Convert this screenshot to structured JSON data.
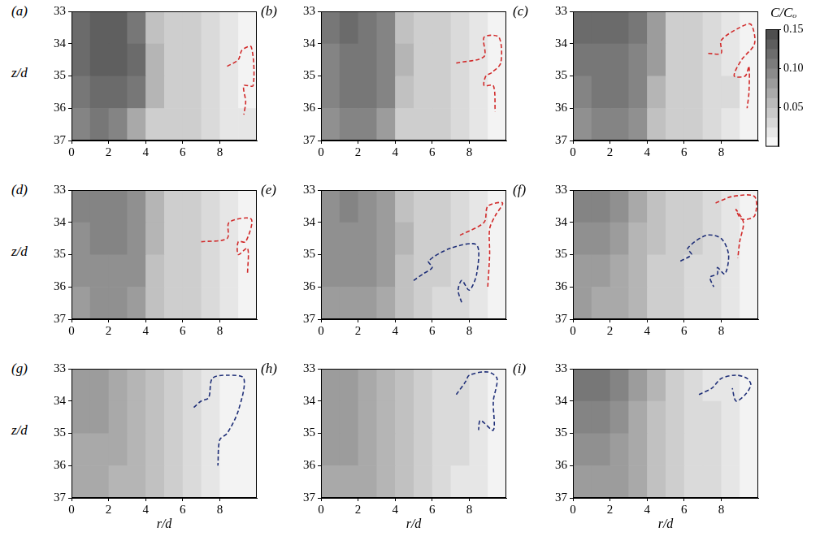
{
  "chart_data": [
    {
      "type": "heatmap",
      "panel": "(a)",
      "y_label": "z/d",
      "xlim": [
        0,
        10
      ],
      "xticks": [
        0,
        2,
        4,
        6,
        8
      ],
      "ylim": [
        37,
        33
      ],
      "yticks": [
        33,
        34,
        35,
        36,
        37
      ],
      "grid": false,
      "cells": {
        "x_edges": [
          0,
          1,
          2,
          3,
          4,
          5,
          6,
          7,
          8,
          9,
          10
        ],
        "y_edges": [
          33,
          34,
          35,
          36,
          37
        ],
        "values": [
          [
            0.12,
            0.13,
            0.13,
            0.11,
            0.05,
            0.04,
            0.04,
            0.03,
            0.02,
            0.01
          ],
          [
            0.12,
            0.13,
            0.13,
            0.12,
            0.06,
            0.04,
            0.04,
            0.03,
            0.02,
            0.01
          ],
          [
            0.11,
            0.12,
            0.12,
            0.11,
            0.06,
            0.04,
            0.04,
            0.03,
            0.02,
            0.01
          ],
          [
            0.1,
            0.11,
            0.1,
            0.07,
            0.04,
            0.04,
            0.04,
            0.03,
            0.02,
            0.02
          ]
        ]
      },
      "series": [
        {
          "color": "#d12a2a",
          "line_style": "dashed",
          "x": [
            8.4,
            9.0,
            9.2,
            9.7,
            9.8,
            9.3,
            9.4,
            9.3
          ],
          "y": [
            34.7,
            34.5,
            34.2,
            34.1,
            35.3,
            35.3,
            35.8,
            36.2
          ]
        }
      ]
    },
    {
      "type": "heatmap",
      "panel": "(b)",
      "xlim": [
        0,
        10
      ],
      "xticks": [
        0,
        2,
        4,
        6,
        8
      ],
      "ylim": [
        37,
        33
      ],
      "yticks": [
        33,
        34,
        35,
        36,
        37
      ],
      "grid": false,
      "cells": {
        "x_edges": [
          0,
          1,
          2,
          3,
          4,
          5,
          6,
          7,
          8,
          9,
          10
        ],
        "y_edges": [
          33,
          34,
          35,
          36,
          37
        ],
        "values": [
          [
            0.11,
            0.12,
            0.11,
            0.1,
            0.05,
            0.04,
            0.04,
            0.03,
            0.02,
            0.01
          ],
          [
            0.1,
            0.11,
            0.11,
            0.1,
            0.06,
            0.04,
            0.04,
            0.03,
            0.02,
            0.01
          ],
          [
            0.1,
            0.11,
            0.11,
            0.1,
            0.05,
            0.04,
            0.04,
            0.03,
            0.02,
            0.01
          ],
          [
            0.09,
            0.1,
            0.1,
            0.08,
            0.04,
            0.04,
            0.04,
            0.03,
            0.02,
            0.01
          ]
        ]
      },
      "series": [
        {
          "color": "#d12a2a",
          "line_style": "dashed",
          "x": [
            7.3,
            8.8,
            8.8,
            9.6,
            9.7,
            9.2,
            8.9,
            8.8,
            9.3,
            9.4
          ],
          "y": [
            34.6,
            34.4,
            33.8,
            33.8,
            34.6,
            34.9,
            35.0,
            35.3,
            35.3,
            36.1
          ]
        }
      ]
    },
    {
      "type": "heatmap",
      "panel": "(c)",
      "xlim": [
        0,
        10
      ],
      "xticks": [
        0,
        2,
        4,
        6,
        8
      ],
      "ylim": [
        37,
        33
      ],
      "yticks": [
        33,
        34,
        35,
        36,
        37
      ],
      "grid": false,
      "cells": {
        "x_edges": [
          0,
          1,
          2,
          3,
          4,
          5,
          6,
          7,
          8,
          9,
          10
        ],
        "y_edges": [
          33,
          34,
          35,
          36,
          37
        ],
        "values": [
          [
            0.12,
            0.12,
            0.12,
            0.11,
            0.08,
            0.04,
            0.04,
            0.03,
            0.02,
            0.01
          ],
          [
            0.11,
            0.11,
            0.11,
            0.1,
            0.08,
            0.04,
            0.04,
            0.03,
            0.02,
            0.01
          ],
          [
            0.1,
            0.11,
            0.11,
            0.1,
            0.06,
            0.04,
            0.04,
            0.03,
            0.03,
            0.01
          ],
          [
            0.09,
            0.1,
            0.1,
            0.09,
            0.05,
            0.04,
            0.04,
            0.03,
            0.02,
            0.01
          ]
        ]
      },
      "series": [
        {
          "color": "#d12a2a",
          "line_style": "dashed",
          "x": [
            7.3,
            8.0,
            8.0,
            9.0,
            9.6,
            9.8,
            9.1,
            8.7,
            9.3,
            9.5,
            9.5,
            9.4
          ],
          "y": [
            34.3,
            34.3,
            33.9,
            33.5,
            33.4,
            34.0,
            34.5,
            35.0,
            35.0,
            34.7,
            35.5,
            36.0
          ]
        }
      ]
    },
    {
      "type": "heatmap",
      "panel": "(d)",
      "y_label": "z/d",
      "xlim": [
        0,
        10
      ],
      "xticks": [
        0,
        2,
        4,
        6,
        8
      ],
      "ylim": [
        37,
        33
      ],
      "yticks": [
        33,
        34,
        35,
        36,
        37
      ],
      "grid": false,
      "cells": {
        "x_edges": [
          0,
          1,
          2,
          3,
          4,
          5,
          6,
          7,
          8,
          9,
          10
        ],
        "y_edges": [
          33,
          34,
          35,
          36,
          37
        ],
        "values": [
          [
            0.1,
            0.1,
            0.1,
            0.09,
            0.06,
            0.04,
            0.04,
            0.03,
            0.02,
            0.01
          ],
          [
            0.09,
            0.1,
            0.1,
            0.09,
            0.06,
            0.04,
            0.04,
            0.03,
            0.02,
            0.01
          ],
          [
            0.09,
            0.09,
            0.09,
            0.09,
            0.05,
            0.04,
            0.04,
            0.03,
            0.02,
            0.01
          ],
          [
            0.08,
            0.09,
            0.09,
            0.08,
            0.05,
            0.04,
            0.04,
            0.03,
            0.02,
            0.01
          ]
        ]
      },
      "series": [
        {
          "color": "#d12a2a",
          "line_style": "dashed",
          "x": [
            7.0,
            8.4,
            8.5,
            9.7,
            9.4,
            9.0,
            9.0,
            9.5,
            9.5
          ],
          "y": [
            34.6,
            34.5,
            34.0,
            33.9,
            34.6,
            34.6,
            35.0,
            34.8,
            35.6
          ]
        }
      ]
    },
    {
      "type": "heatmap",
      "panel": "(e)",
      "xlim": [
        0,
        10
      ],
      "xticks": [
        0,
        2,
        4,
        6,
        8
      ],
      "ylim": [
        37,
        33
      ],
      "yticks": [
        33,
        34,
        35,
        36,
        37
      ],
      "grid": false,
      "cells": {
        "x_edges": [
          0,
          1,
          2,
          3,
          4,
          5,
          6,
          7,
          8,
          9,
          10
        ],
        "y_edges": [
          33,
          34,
          35,
          36,
          37
        ],
        "values": [
          [
            0.09,
            0.1,
            0.09,
            0.08,
            0.05,
            0.04,
            0.04,
            0.03,
            0.02,
            0.01
          ],
          [
            0.09,
            0.09,
            0.09,
            0.08,
            0.06,
            0.04,
            0.04,
            0.03,
            0.02,
            0.01
          ],
          [
            0.09,
            0.09,
            0.09,
            0.08,
            0.05,
            0.04,
            0.04,
            0.03,
            0.02,
            0.01
          ],
          [
            0.08,
            0.08,
            0.08,
            0.07,
            0.05,
            0.04,
            0.03,
            0.03,
            0.02,
            0.01
          ]
        ]
      },
      "series": [
        {
          "color": "#d12a2a",
          "line_style": "dashed",
          "x": [
            7.5,
            8.8,
            9.0,
            9.8,
            9.4,
            9.1,
            9.1,
            9.0
          ],
          "y": [
            34.4,
            34.0,
            33.5,
            33.4,
            33.8,
            34.2,
            35.0,
            36.0
          ]
        },
        {
          "color": "#1f2f78",
          "line_style": "dashed",
          "x": [
            5.0,
            5.5,
            6.0,
            5.8,
            7.0,
            8.4,
            8.4,
            8.0,
            7.6,
            7.4,
            7.6
          ],
          "y": [
            35.8,
            35.6,
            35.4,
            35.2,
            34.8,
            34.7,
            35.6,
            36.1,
            35.8,
            36.1,
            36.5
          ]
        }
      ]
    },
    {
      "type": "heatmap",
      "panel": "(f)",
      "xlim": [
        0,
        10
      ],
      "xticks": [
        0,
        2,
        4,
        6,
        8
      ],
      "ylim": [
        37,
        33
      ],
      "yticks": [
        33,
        34,
        35,
        36,
        37
      ],
      "grid": false,
      "cells": {
        "x_edges": [
          0,
          1,
          2,
          3,
          4,
          5,
          6,
          7,
          8,
          9,
          10
        ],
        "y_edges": [
          33,
          34,
          35,
          36,
          37
        ],
        "values": [
          [
            0.1,
            0.1,
            0.09,
            0.07,
            0.05,
            0.04,
            0.04,
            0.03,
            0.02,
            0.01
          ],
          [
            0.09,
            0.09,
            0.08,
            0.06,
            0.05,
            0.04,
            0.04,
            0.03,
            0.02,
            0.01
          ],
          [
            0.08,
            0.08,
            0.07,
            0.06,
            0.04,
            0.04,
            0.03,
            0.03,
            0.02,
            0.01
          ],
          [
            0.08,
            0.07,
            0.07,
            0.06,
            0.04,
            0.04,
            0.03,
            0.03,
            0.02,
            0.01
          ]
        ]
      },
      "series": [
        {
          "color": "#d12a2a",
          "line_style": "dashed",
          "x": [
            7.7,
            8.6,
            9.8,
            9.8,
            9.1,
            8.8,
            9.2,
            9.0,
            8.9
          ],
          "y": [
            33.4,
            33.2,
            33.2,
            33.8,
            33.9,
            33.6,
            34.0,
            34.6,
            35.1
          ]
        },
        {
          "color": "#1f2f78",
          "line_style": "dashed",
          "x": [
            5.8,
            6.4,
            6.2,
            7.2,
            8.0,
            8.4,
            8.2,
            7.8,
            7.8,
            7.4,
            7.6
          ],
          "y": [
            35.2,
            35.0,
            34.8,
            34.4,
            34.5,
            35.0,
            35.6,
            35.4,
            35.6,
            35.7,
            36.0
          ]
        }
      ]
    },
    {
      "type": "heatmap",
      "panel": "(g)",
      "x_label": "r/d",
      "y_label": "z/d",
      "xlim": [
        0,
        10
      ],
      "xticks": [
        0,
        2,
        4,
        6,
        8
      ],
      "ylim": [
        37,
        33
      ],
      "yticks": [
        33,
        34,
        35,
        36,
        37
      ],
      "grid": false,
      "cells": {
        "x_edges": [
          0,
          1,
          2,
          3,
          4,
          5,
          6,
          7,
          8,
          9,
          10
        ],
        "y_edges": [
          33,
          34,
          35,
          36,
          37
        ],
        "values": [
          [
            0.08,
            0.08,
            0.07,
            0.06,
            0.05,
            0.04,
            0.03,
            0.02,
            0.01,
            0.01
          ],
          [
            0.08,
            0.08,
            0.07,
            0.06,
            0.05,
            0.04,
            0.03,
            0.02,
            0.01,
            0.01
          ],
          [
            0.07,
            0.07,
            0.07,
            0.06,
            0.05,
            0.04,
            0.03,
            0.02,
            0.01,
            0.01
          ],
          [
            0.07,
            0.07,
            0.06,
            0.06,
            0.05,
            0.04,
            0.03,
            0.02,
            0.01,
            0.01
          ]
        ]
      },
      "series": [
        {
          "color": "#1f2f78",
          "line_style": "dashed",
          "x": [
            6.6,
            7.0,
            7.4,
            7.6,
            8.4,
            9.3,
            9.0,
            8.4,
            8.0,
            7.9
          ],
          "y": [
            34.2,
            34.0,
            33.9,
            33.3,
            33.2,
            33.3,
            34.3,
            35.0,
            35.2,
            36.0
          ]
        }
      ]
    },
    {
      "type": "heatmap",
      "panel": "(h)",
      "x_label": "r/d",
      "xlim": [
        0,
        10
      ],
      "xticks": [
        0,
        2,
        4,
        6,
        8
      ],
      "ylim": [
        37,
        33
      ],
      "yticks": [
        33,
        34,
        35,
        36,
        37
      ],
      "grid": false,
      "cells": {
        "x_edges": [
          0,
          1,
          2,
          3,
          4,
          5,
          6,
          7,
          8,
          9,
          10
        ],
        "y_edges": [
          33,
          34,
          35,
          36,
          37
        ],
        "values": [
          [
            0.08,
            0.08,
            0.07,
            0.06,
            0.05,
            0.04,
            0.03,
            0.03,
            0.02,
            0.01
          ],
          [
            0.08,
            0.08,
            0.07,
            0.06,
            0.05,
            0.04,
            0.03,
            0.03,
            0.02,
            0.01
          ],
          [
            0.08,
            0.08,
            0.07,
            0.06,
            0.05,
            0.04,
            0.03,
            0.03,
            0.02,
            0.01
          ],
          [
            0.07,
            0.07,
            0.07,
            0.06,
            0.05,
            0.04,
            0.03,
            0.02,
            0.02,
            0.01
          ]
        ]
      },
      "series": [
        {
          "color": "#1f2f78",
          "line_style": "dashed",
          "x": [
            7.3,
            7.8,
            8.0,
            9.0,
            9.5,
            9.3,
            9.3,
            8.6,
            8.5
          ],
          "y": [
            33.8,
            33.4,
            33.2,
            33.1,
            33.3,
            34.0,
            34.9,
            34.6,
            34.9
          ]
        }
      ]
    },
    {
      "type": "heatmap",
      "panel": "(i)",
      "x_label": "r/d",
      "xlim": [
        0,
        10
      ],
      "xticks": [
        0,
        2,
        4,
        6,
        8
      ],
      "ylim": [
        37,
        33
      ],
      "yticks": [
        33,
        34,
        35,
        36,
        37
      ],
      "grid": false,
      "cells": {
        "x_edges": [
          0,
          1,
          2,
          3,
          4,
          5,
          6,
          7,
          8,
          9,
          10
        ],
        "y_edges": [
          33,
          34,
          35,
          36,
          37
        ],
        "values": [
          [
            0.11,
            0.11,
            0.1,
            0.08,
            0.06,
            0.04,
            0.03,
            0.02,
            0.02,
            0.01
          ],
          [
            0.1,
            0.1,
            0.09,
            0.07,
            0.05,
            0.04,
            0.03,
            0.03,
            0.02,
            0.01
          ],
          [
            0.09,
            0.09,
            0.08,
            0.07,
            0.05,
            0.04,
            0.03,
            0.03,
            0.02,
            0.01
          ],
          [
            0.08,
            0.08,
            0.08,
            0.07,
            0.05,
            0.04,
            0.03,
            0.03,
            0.02,
            0.01
          ]
        ]
      },
      "series": [
        {
          "color": "#1f2f78",
          "line_style": "dashed",
          "x": [
            6.8,
            7.5,
            8.0,
            8.8,
            9.4,
            9.6,
            9.3,
            8.8,
            8.6
          ],
          "y": [
            33.8,
            33.6,
            33.3,
            33.2,
            33.3,
            33.5,
            33.8,
            34.0,
            33.6
          ]
        }
      ]
    },
    {
      "type": "colorbar",
      "title": "C/Cₒ",
      "ylim": [
        0,
        0.15
      ],
      "yticks": [
        0.05,
        {
          "value": 0.1,
          "label": "0.10"
        },
        0.15
      ]
    }
  ]
}
